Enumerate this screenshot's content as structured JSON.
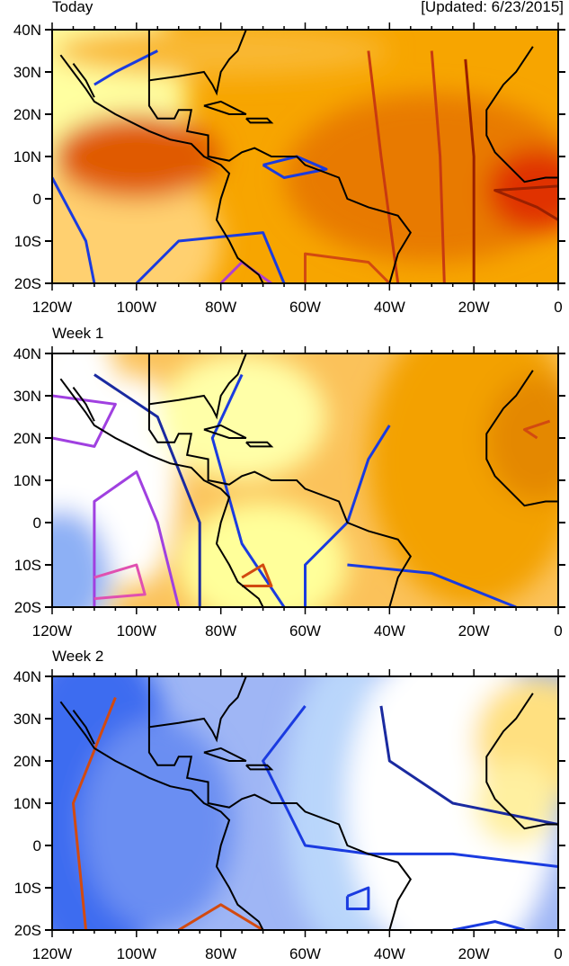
{
  "header": {
    "updated": "[Updated: 6/23/2015]"
  },
  "panels": [
    {
      "title": "Today",
      "theme": "warm"
    },
    {
      "title": "Week 1",
      "theme": "mixed"
    },
    {
      "title": "Week 2",
      "theme": "cool"
    }
  ],
  "axes": {
    "lat_labels": [
      "40N",
      "30N",
      "20N",
      "10N",
      "0",
      "10S",
      "20S"
    ],
    "lon_labels": [
      "120W",
      "100W",
      "80W",
      "60W",
      "40W",
      "20W",
      "0"
    ],
    "lat_range": [
      -20,
      40
    ],
    "lon_range": [
      -120,
      0
    ]
  },
  "colors": {
    "warm_base": "#f7a700",
    "cool_base": "#7b9cf0",
    "contour_blue": "#1a3be0",
    "contour_red": "#d24a10"
  }
}
